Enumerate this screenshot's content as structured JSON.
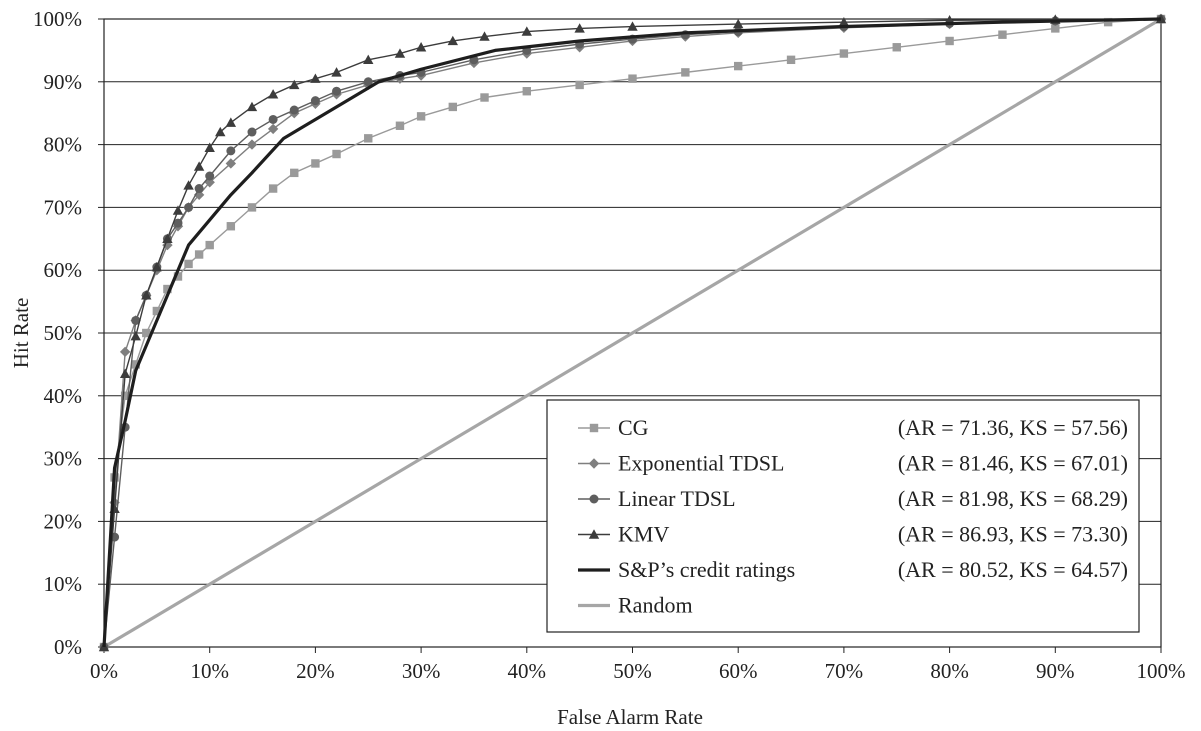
{
  "chart_data": {
    "type": "line",
    "title": "",
    "xlabel": "False Alarm Rate",
    "ylabel": "Hit Rate",
    "xlim": [
      0,
      100
    ],
    "ylim": [
      0,
      100
    ],
    "grid": "horizontal",
    "legend_position": "bottom-right",
    "x_ticks": [
      "0%",
      "10%",
      "20%",
      "30%",
      "40%",
      "50%",
      "60%",
      "70%",
      "80%",
      "90%",
      "100%"
    ],
    "y_ticks": [
      "0%",
      "10%",
      "20%",
      "30%",
      "40%",
      "50%",
      "60%",
      "70%",
      "80%",
      "90%",
      "100%"
    ],
    "series": [
      {
        "name": "CG",
        "stats": "(AR = 71.36, KS = 57.56)",
        "color": "#9a9a9a",
        "marker": "square",
        "x": [
          0,
          1,
          2,
          3,
          4,
          5,
          6,
          7,
          8,
          9,
          10,
          12,
          14,
          16,
          18,
          20,
          22,
          25,
          28,
          30,
          33,
          36,
          40,
          45,
          50,
          55,
          60,
          65,
          70,
          75,
          80,
          85,
          90,
          95,
          100
        ],
        "y": [
          0,
          27,
          40,
          45,
          50,
          53.5,
          57,
          59,
          61,
          62.5,
          64,
          67,
          70,
          73,
          75.5,
          77,
          78.5,
          81,
          83,
          84.5,
          86,
          87.5,
          88.5,
          89.5,
          90.5,
          91.5,
          92.5,
          93.5,
          94.5,
          95.5,
          96.5,
          97.5,
          98.5,
          99.5,
          100
        ]
      },
      {
        "name": "Exponential TDSL",
        "stats": "(AR = 81.46, KS = 67.01)",
        "color": "#7f7f7f",
        "marker": "diamond",
        "x": [
          0,
          1,
          2,
          3,
          4,
          5,
          6,
          7,
          8,
          9,
          10,
          12,
          14,
          16,
          18,
          20,
          22,
          25,
          28,
          30,
          35,
          40,
          45,
          50,
          55,
          60,
          70,
          80,
          90,
          100
        ],
        "y": [
          0,
          23,
          47,
          52,
          56,
          60,
          64,
          67,
          70,
          72,
          74,
          77,
          80,
          82.5,
          85,
          86.5,
          88,
          89.5,
          90.5,
          91,
          93,
          94.5,
          95.5,
          96.5,
          97.2,
          97.8,
          98.6,
          99.2,
          99.7,
          100
        ]
      },
      {
        "name": "Linear TDSL",
        "stats": "(AR = 81.98, KS = 68.29)",
        "color": "#5e5e5e",
        "marker": "circle",
        "x": [
          0,
          1,
          2,
          3,
          4,
          5,
          6,
          7,
          8,
          9,
          10,
          12,
          14,
          16,
          18,
          20,
          22,
          25,
          28,
          30,
          35,
          40,
          45,
          50,
          55,
          60,
          70,
          80,
          90,
          100
        ],
        "y": [
          0,
          17.5,
          35,
          52,
          56,
          60.5,
          65,
          67.5,
          70,
          73,
          75,
          79,
          82,
          84,
          85.5,
          87,
          88.5,
          90,
          91,
          91.5,
          93.5,
          95,
          96,
          96.8,
          97.5,
          98,
          98.8,
          99.3,
          99.7,
          100
        ]
      },
      {
        "name": "KMV",
        "stats": "(AR = 86.93, KS = 73.30)",
        "color": "#3c3c3c",
        "marker": "triangle",
        "x": [
          0,
          1,
          2,
          3,
          4,
          5,
          6,
          7,
          8,
          9,
          10,
          11,
          12,
          14,
          16,
          18,
          20,
          22,
          25,
          28,
          30,
          33,
          36,
          40,
          45,
          50,
          60,
          70,
          80,
          90,
          100
        ],
        "y": [
          0,
          22,
          43.5,
          49.5,
          56,
          60.5,
          65,
          69.5,
          73.5,
          76.5,
          79.5,
          82,
          83.5,
          86,
          88,
          89.5,
          90.5,
          91.5,
          93.5,
          94.5,
          95.5,
          96.5,
          97.2,
          98,
          98.5,
          98.8,
          99.2,
          99.5,
          99.8,
          99.9,
          100
        ]
      },
      {
        "name": "S&P’s credit ratings",
        "stats": "(AR = 80.52, KS = 64.57)",
        "color": "#1e1e1e",
        "marker": "none",
        "x": [
          0,
          1,
          2,
          3,
          4,
          5,
          6,
          7,
          8,
          10,
          12,
          14,
          17,
          20,
          23,
          26,
          30,
          37,
          45,
          55,
          70,
          85,
          100
        ],
        "y": [
          0,
          28.5,
          36,
          44,
          48,
          52,
          56,
          60,
          64,
          68,
          72,
          75.5,
          81,
          84,
          87,
          90,
          92,
          95,
          96.5,
          97.8,
          98.8,
          99.5,
          100
        ]
      },
      {
        "name": "Random",
        "stats": "",
        "color": "#a6a6a6",
        "marker": "none",
        "x": [
          0,
          100
        ],
        "y": [
          0,
          100
        ]
      }
    ]
  }
}
